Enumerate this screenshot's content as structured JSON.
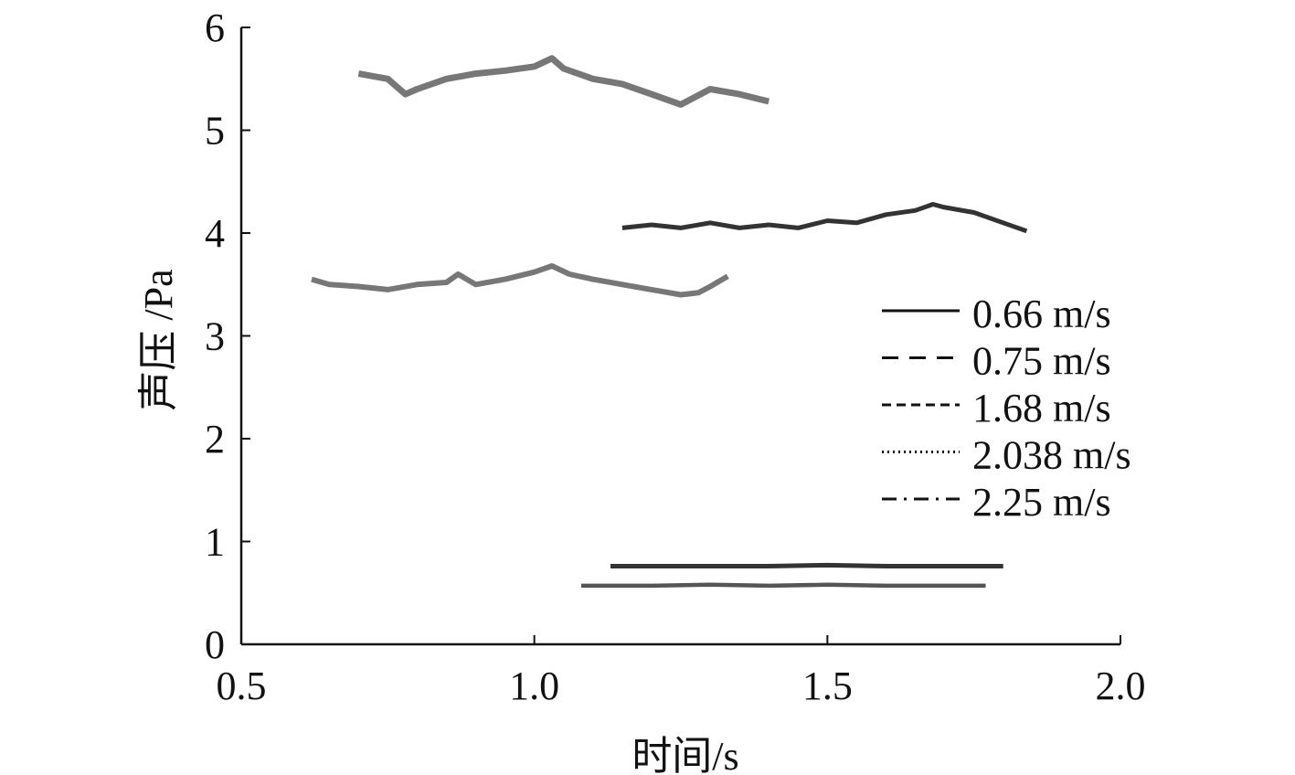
{
  "chart_data": {
    "type": "line",
    "xlabel": "时间/s",
    "ylabel": "声压 /Pa",
    "xlim": [
      0.5,
      2.0
    ],
    "ylim": [
      0,
      6
    ],
    "xticks": [
      "0.5",
      "1.0",
      "1.5",
      "2.0"
    ],
    "yticks": [
      "0",
      "1",
      "2",
      "3",
      "4",
      "5",
      "6"
    ],
    "grid": false,
    "legend_position": "right",
    "series": [
      {
        "name": "0.66 m/s",
        "style": "solid",
        "color": "#555555",
        "x": [
          1.08,
          1.2,
          1.3,
          1.4,
          1.5,
          1.6,
          1.7,
          1.77
        ],
        "y": [
          0.57,
          0.57,
          0.58,
          0.57,
          0.58,
          0.57,
          0.57,
          0.57
        ]
      },
      {
        "name": "0.75 m/s",
        "style": "dashed",
        "color": "#333333",
        "x": [
          1.13,
          1.2,
          1.3,
          1.4,
          1.5,
          1.6,
          1.7,
          1.8
        ],
        "y": [
          0.76,
          0.76,
          0.76,
          0.76,
          0.77,
          0.76,
          0.76,
          0.76
        ]
      },
      {
        "name": "1.68 m/s",
        "style": "dashed-fine",
        "color": "#777777",
        "x": [
          0.62,
          0.65,
          0.7,
          0.75,
          0.8,
          0.85,
          0.87,
          0.9,
          0.95,
          1.0,
          1.03,
          1.06,
          1.1,
          1.15,
          1.2,
          1.25,
          1.28,
          1.3,
          1.33
        ],
        "y": [
          3.55,
          3.5,
          3.48,
          3.45,
          3.5,
          3.52,
          3.6,
          3.5,
          3.55,
          3.62,
          3.68,
          3.6,
          3.55,
          3.5,
          3.45,
          3.4,
          3.42,
          3.48,
          3.58
        ]
      },
      {
        "name": "2.038 m/s",
        "style": "dotted",
        "color": "#333333",
        "x": [
          1.15,
          1.2,
          1.25,
          1.3,
          1.35,
          1.4,
          1.45,
          1.5,
          1.55,
          1.6,
          1.65,
          1.68,
          1.7,
          1.75,
          1.8,
          1.84
        ],
        "y": [
          4.05,
          4.08,
          4.05,
          4.1,
          4.05,
          4.08,
          4.05,
          4.12,
          4.1,
          4.18,
          4.22,
          4.28,
          4.25,
          4.2,
          4.1,
          4.02
        ]
      },
      {
        "name": "2.25 m/s",
        "style": "dash-dot",
        "color": "#777777",
        "x": [
          0.7,
          0.75,
          0.78,
          0.8,
          0.85,
          0.9,
          0.95,
          1.0,
          1.03,
          1.05,
          1.1,
          1.15,
          1.2,
          1.25,
          1.3,
          1.35,
          1.4
        ],
        "y": [
          5.55,
          5.5,
          5.35,
          5.4,
          5.5,
          5.55,
          5.58,
          5.62,
          5.7,
          5.6,
          5.5,
          5.45,
          5.35,
          5.25,
          5.4,
          5.35,
          5.28
        ]
      }
    ]
  }
}
